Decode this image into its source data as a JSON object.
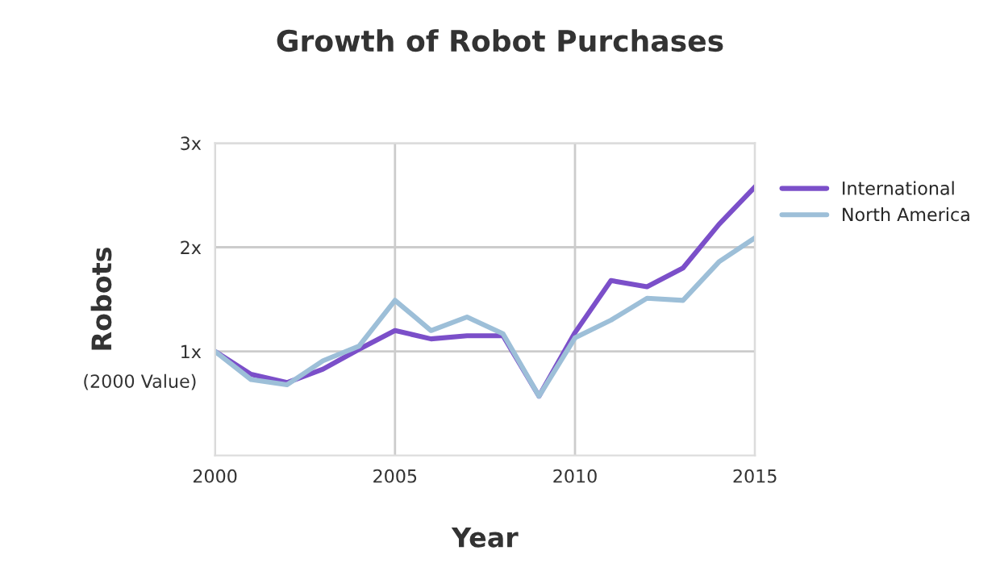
{
  "chart_data": {
    "type": "line",
    "title": "Growth of Robot Purchases",
    "xlabel": "Year",
    "ylabel": "Robots",
    "x": [
      2000,
      2001,
      2002,
      2003,
      2004,
      2005,
      2006,
      2007,
      2008,
      2009,
      2010,
      2011,
      2012,
      2013,
      2014,
      2015
    ],
    "series": [
      {
        "name": "International",
        "color": "#7b4fc9",
        "values": [
          1.0,
          0.78,
          0.7,
          0.83,
          1.02,
          1.2,
          1.12,
          1.15,
          1.15,
          0.57,
          1.18,
          1.68,
          1.62,
          1.8,
          2.22,
          2.58
        ]
      },
      {
        "name": "North America",
        "color": "#9dbfd8",
        "values": [
          1.0,
          0.73,
          0.68,
          0.91,
          1.05,
          1.49,
          1.2,
          1.33,
          1.17,
          0.57,
          1.13,
          1.3,
          1.51,
          1.49,
          1.86,
          2.09
        ]
      }
    ],
    "xlim": [
      2000,
      2015
    ],
    "xticks": [
      2000,
      2005,
      2010,
      2015
    ],
    "ylim": [
      0,
      3
    ],
    "yticks": [
      {
        "value": 1,
        "label": "1x"
      },
      {
        "value": 2,
        "label": "2x"
      },
      {
        "value": 3,
        "label": "3x"
      }
    ],
    "annotations": [
      {
        "text": "(2000 Value)",
        "x": 2000,
        "y": 1
      }
    ],
    "grid": true,
    "legend": "right",
    "marker": "none",
    "line_style": "solid"
  }
}
